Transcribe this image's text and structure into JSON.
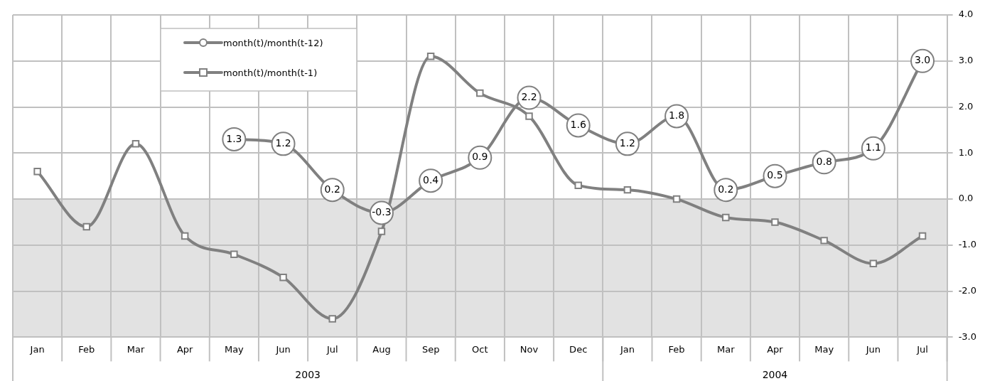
{
  "chart_data": {
    "type": "line",
    "categories": [
      "Jan",
      "Feb",
      "Mar",
      "Apr",
      "May",
      "Jun",
      "Jul",
      "Aug",
      "Sep",
      "Oct",
      "Nov",
      "Dec",
      "Jan",
      "Feb",
      "Mar",
      "Apr",
      "May",
      "Jun",
      "Jul"
    ],
    "series": [
      {
        "name": "month(t)/month(t-12)",
        "color": "#808080",
        "marker": "circle",
        "values": [
          null,
          null,
          null,
          null,
          1.3,
          1.2,
          0.2,
          -0.3,
          0.4,
          0.9,
          2.2,
          1.6,
          1.2,
          1.8,
          0.2,
          0.5,
          0.8,
          1.1,
          3.0
        ],
        "value_labels": [
          null,
          null,
          null,
          null,
          "1.3",
          "1.2",
          "0.2",
          "-0.3",
          "0.4",
          "0.9",
          "2.2",
          "1.6",
          "1.2",
          "1.8",
          "0.2",
          "0.5",
          "0.8",
          "1.1",
          "3.0"
        ]
      },
      {
        "name": "month(t)/month(t-1)",
        "color": "#808080",
        "marker": "square",
        "values": [
          0.6,
          -0.6,
          1.2,
          -0.8,
          -1.2,
          -1.7,
          -2.6,
          -0.7,
          3.1,
          2.3,
          1.8,
          0.3,
          0.2,
          0.0,
          -0.4,
          -0.5,
          -0.9,
          -1.4,
          -0.8
        ]
      }
    ],
    "ylim": [
      -3,
      4
    ],
    "yticks": [
      {
        "value": -3,
        "label": "-3.0"
      },
      {
        "value": -2,
        "label": "-2.0"
      },
      {
        "value": -1,
        "label": "-1.0"
      },
      {
        "value": 0,
        "label": "0.0"
      },
      {
        "value": 1,
        "label": "1.0"
      },
      {
        "value": 2,
        "label": "2.0"
      },
      {
        "value": 3,
        "label": "3.0"
      },
      {
        "value": 4,
        "label": "4.0"
      }
    ],
    "bands": [
      {
        "axis": "y",
        "from": -3,
        "to": 0,
        "color": "#e2e2e2"
      }
    ],
    "annotations": [
      "2003",
      "2004"
    ],
    "grid": true,
    "legend": "top left",
    "line_style": "solid"
  }
}
